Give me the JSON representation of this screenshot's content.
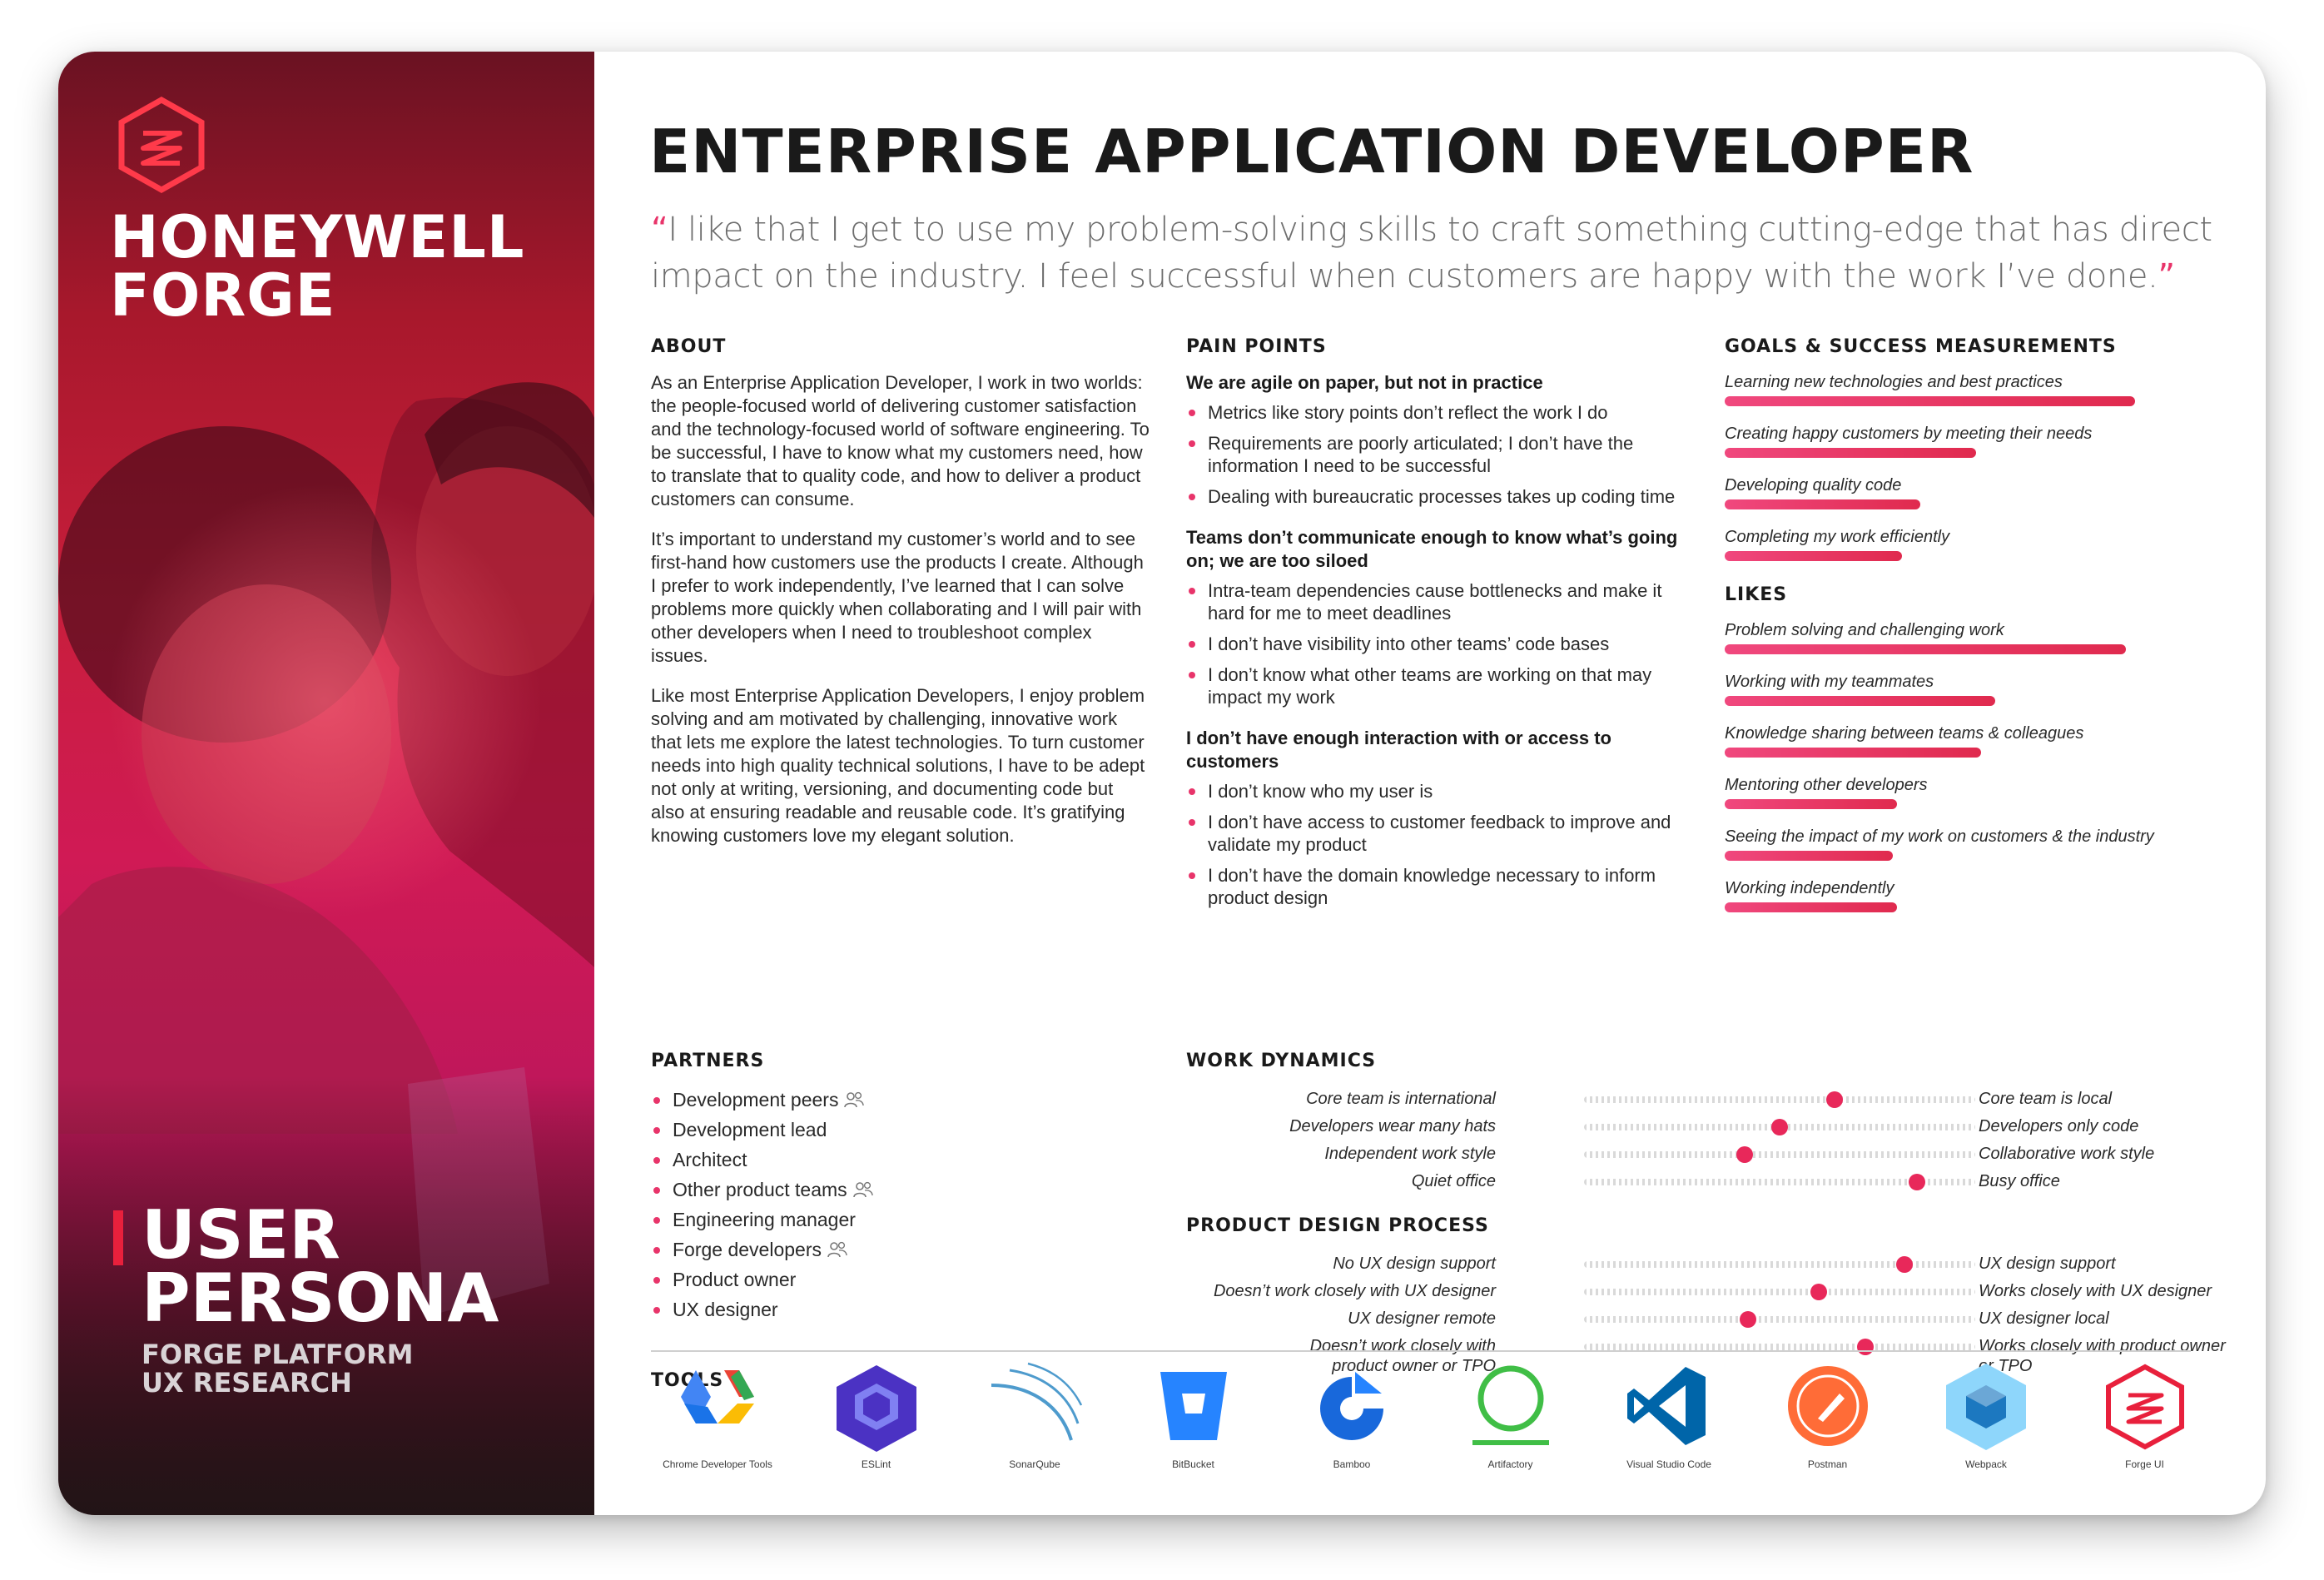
{
  "brand": {
    "logo_icon": "honeywell-forge-hexagon-icon",
    "name_line1": "HONEYWELL",
    "name_line2": "FORGE"
  },
  "persona_block": {
    "title_line1": "USER",
    "title_line2": "PERSONA",
    "sub_line1": "FORGE PLATFORM",
    "sub_line2": "UX RESEARCH"
  },
  "header": {
    "title": "ENTERPRISE APPLICATION DEVELOPER",
    "quote_open": "“",
    "quote_text": "I like that I get to use my problem-solving skills to craft something cutting-edge that has direct impact on the industry. I feel successful when customers are happy with the work I’ve done.",
    "quote_close": "”"
  },
  "about": {
    "heading": "ABOUT",
    "paragraphs": [
      "As an Enterprise Application Developer, I work in two worlds: the people-focused world of delivering customer satisfaction and the technology-focused world of software engineering. To be successful, I have to know what my customers need, how to translate that to quality code, and how to deliver a product customers can consume.",
      "It’s important to understand my customer’s world and to see first-hand how customers use the products I create. Although I prefer to work independently, I’ve learned that I can solve problems more quickly when collaborating and I will pair with other developers when I need to troubleshoot complex issues.",
      "Like most Enterprise Application Developers, I enjoy problem solving and am motivated by challenging, innovative work that lets me explore the latest technologies. To turn customer needs into high quality technical solutions, I have to be adept not only at writing, versioning, and documenting code but also at ensuring readable and reusable code. It’s gratifying knowing customers love my elegant solution."
    ]
  },
  "pain_points": {
    "heading": "PAIN POINTS",
    "groups": [
      {
        "title": "We are agile on paper, but not in practice",
        "items": [
          "Metrics like story points don’t reflect the work I do",
          "Requirements are poorly articulated; I don’t have the information I need to be successful",
          "Dealing with bureaucratic processes takes up coding time"
        ]
      },
      {
        "title": "Teams don’t communicate enough to know what’s going on; we are too siloed",
        "items": [
          "Intra-team dependencies cause bottlenecks and make it hard for me to meet deadlines",
          "I don’t have visibility into other teams’ code bases",
          "I don’t know what other teams are working on that may impact my work"
        ]
      },
      {
        "title": "I don’t have enough interaction with or access to customers",
        "items": [
          "I don’t know who my user is",
          "I don’t have access to customer feedback to improve and validate my product",
          "I don’t have the domain knowledge necessary to inform product design"
        ]
      }
    ]
  },
  "goals": {
    "heading": "GOALS & SUCCESS MEASUREMENTS",
    "items": [
      {
        "label": "Learning new technologies and best practices",
        "level": 0.88
      },
      {
        "label": "Creating happy customers by meeting their needs",
        "level": 0.54
      },
      {
        "label": "Developing quality code",
        "level": 0.42
      },
      {
        "label": "Completing my work efficiently",
        "level": 0.38
      }
    ]
  },
  "likes": {
    "heading": "LIKES",
    "items": [
      {
        "label": "Problem solving and challenging work",
        "level": 0.86
      },
      {
        "label": "Working with my teammates",
        "level": 0.58
      },
      {
        "label": "Knowledge sharing between teams & colleagues",
        "level": 0.55
      },
      {
        "label": "Mentoring other developers",
        "level": 0.37
      },
      {
        "label": "Seeing the impact of my work on customers & the industry",
        "level": 0.36
      },
      {
        "label": "Working independently",
        "level": 0.37
      }
    ]
  },
  "partners": {
    "heading": "PARTNERS",
    "items": [
      {
        "label": "Development peers",
        "group_icon": true
      },
      {
        "label": "Development lead",
        "group_icon": false
      },
      {
        "label": "Architect",
        "group_icon": false
      },
      {
        "label": "Other product teams",
        "group_icon": true
      },
      {
        "label": "Engineering manager",
        "group_icon": false
      },
      {
        "label": "Forge developers",
        "group_icon": true
      },
      {
        "label": "Product owner",
        "group_icon": false
      },
      {
        "label": "UX designer",
        "group_icon": false
      }
    ]
  },
  "work_dynamics": {
    "heading": "WORK DYNAMICS",
    "rows": [
      {
        "left": "Core team is international",
        "right": "Core team is local",
        "value": 0.64
      },
      {
        "left": "Developers wear many hats",
        "right": "Developers only code",
        "value": 0.5
      },
      {
        "left": "Independent work style",
        "right": "Collaborative work style",
        "value": 0.41
      },
      {
        "left": "Quiet office",
        "right": "Busy office",
        "value": 0.85
      }
    ]
  },
  "product_design": {
    "heading": "PRODUCT DESIGN PROCESS",
    "rows": [
      {
        "left": "No UX design support",
        "right": "UX design support",
        "value": 0.82
      },
      {
        "left": "Doesn’t work closely with UX designer",
        "right": "Works closely with UX designer",
        "value": 0.6
      },
      {
        "left": "UX designer remote",
        "right": "UX designer local",
        "value": 0.42
      },
      {
        "left": "Doesn’t work closely with product owner or TPO",
        "right": "Works closely with product owner or TPO",
        "value": 0.72
      }
    ]
  },
  "tools": {
    "heading": "TOOLS",
    "items": [
      {
        "label": "Chrome Developer Tools",
        "icon": "chrome-devtools-icon"
      },
      {
        "label": "ESLint",
        "icon": "eslint-icon"
      },
      {
        "label": "SonarQube",
        "icon": "sonarqube-icon"
      },
      {
        "label": "BitBucket",
        "icon": "bitbucket-icon"
      },
      {
        "label": "Bamboo",
        "icon": "bamboo-icon"
      },
      {
        "label": "Artifactory",
        "icon": "artifactory-icon"
      },
      {
        "label": "Visual Studio Code",
        "icon": "vscode-icon"
      },
      {
        "label": "Postman",
        "icon": "postman-icon"
      },
      {
        "label": "Webpack",
        "icon": "webpack-icon"
      },
      {
        "label": "Forge UI",
        "icon": "forge-ui-icon"
      }
    ]
  },
  "colors": {
    "accent": "#e8346a",
    "brand_red": "#e8203c",
    "bar_gradient_start": "#f0487e",
    "bar_gradient_end": "#e02a4e"
  }
}
